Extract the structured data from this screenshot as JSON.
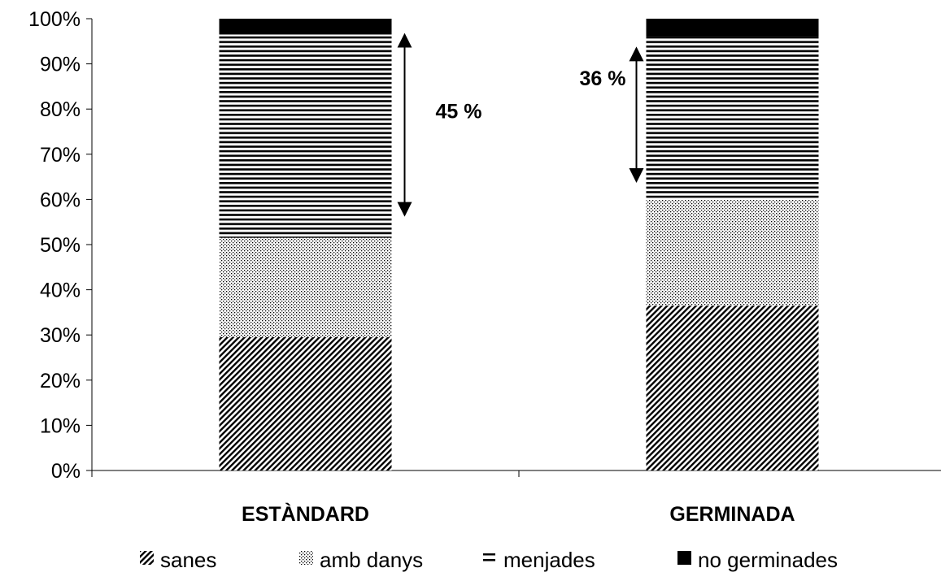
{
  "chart_data": {
    "type": "bar",
    "stacked": true,
    "categories": [
      "ESTÀNDARD",
      "GERMINADA"
    ],
    "ylim": [
      0,
      100
    ],
    "yticks": [
      "0%",
      "10%",
      "20%",
      "30%",
      "40%",
      "50%",
      "60%",
      "70%",
      "80%",
      "90%",
      "100%"
    ],
    "grid": false,
    "legend_position": "bottom",
    "series": [
      {
        "name": "sanes",
        "pattern": "diagonal-hatch",
        "values": [
          29.5,
          36.5
        ]
      },
      {
        "name": "amb danys",
        "pattern": "dots",
        "values": [
          22,
          23.5
        ]
      },
      {
        "name": "menjades",
        "pattern": "horizontal-lines",
        "values": [
          45,
          36
        ]
      },
      {
        "name": "no germinades",
        "pattern": "solid-black",
        "values": [
          3.5,
          4
        ]
      }
    ],
    "annotations": [
      {
        "category": "ESTÀNDARD",
        "text": "45 %",
        "from": 56.5,
        "to": 96.5,
        "side": "right"
      },
      {
        "category": "GERMINADA",
        "text": "36 %",
        "from": 64,
        "to": 93.5,
        "side": "left"
      }
    ]
  }
}
